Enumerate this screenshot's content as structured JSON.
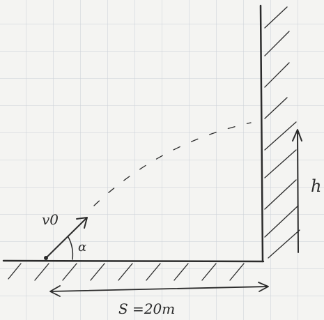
{
  "labels": {
    "velocity": "v0",
    "angle": "α",
    "height": "h",
    "distance": "S =20m"
  }
}
